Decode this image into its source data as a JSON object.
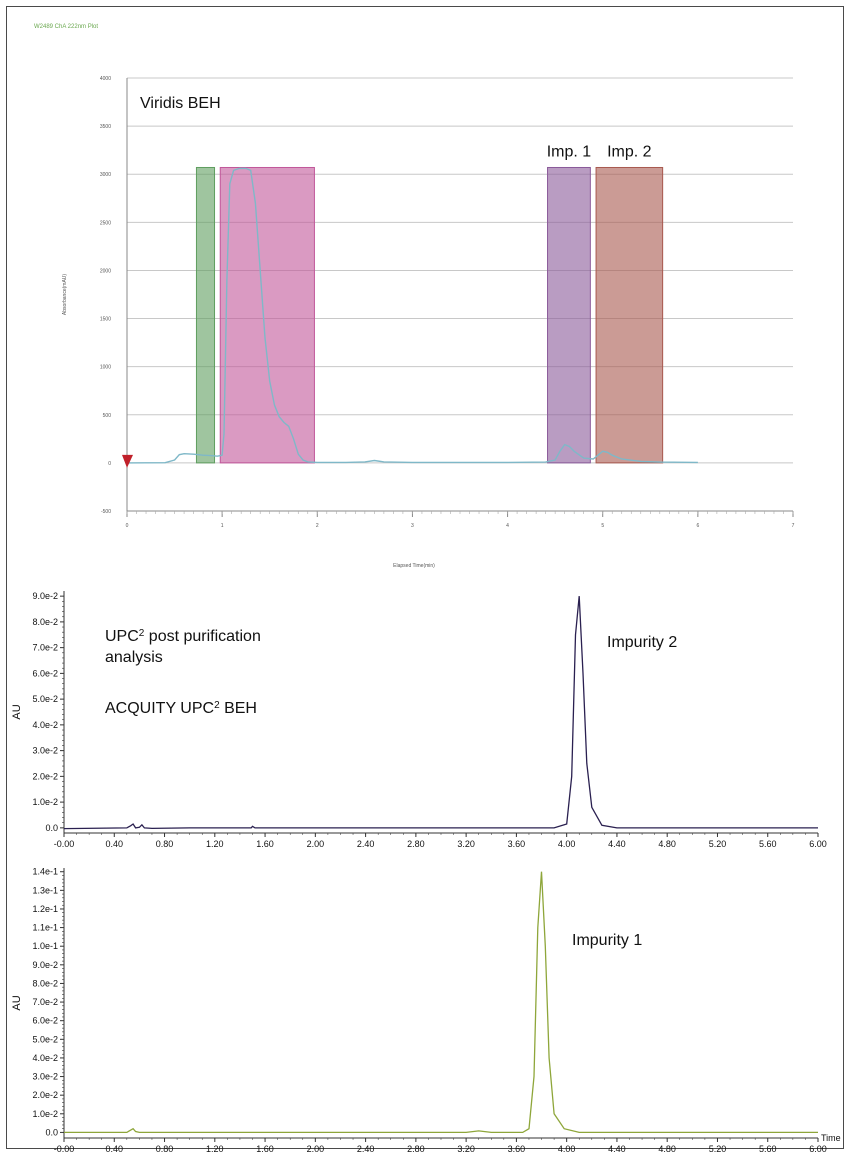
{
  "header": {
    "plot_title": "W2489 ChA 222nm Plot"
  },
  "chart_data": [
    {
      "type": "line",
      "title": "Viridis BEH",
      "xlabel": "Elapsed Time(min)",
      "ylabel": "Absorbance(mAU)",
      "xlim": [
        0,
        7
      ],
      "ylim": [
        -500,
        4000
      ],
      "x_ticks": [
        "0",
        "1",
        "2",
        "3",
        "4",
        "5",
        "6",
        "7"
      ],
      "y_ticks": [
        "-500",
        "0",
        "500",
        "1000",
        "1500",
        "2000",
        "2500",
        "3000",
        "3500",
        "4000"
      ],
      "grid": true,
      "line_color": "#7fb8c8",
      "series": [
        {
          "x": [
            0,
            0.4,
            0.5,
            0.55,
            0.6,
            0.7,
            0.8,
            0.9,
            0.95,
            1.0,
            1.02,
            1.05,
            1.08,
            1.12,
            1.18,
            1.25,
            1.3,
            1.35,
            1.4,
            1.45,
            1.5,
            1.55,
            1.6,
            1.65,
            1.7,
            1.75,
            1.8,
            1.85,
            1.9,
            2.0,
            2.3,
            2.5,
            2.6,
            2.7,
            3.0,
            4.0,
            4.4,
            4.5,
            4.55,
            4.6,
            4.65,
            4.7,
            4.8,
            4.9,
            4.95,
            5.0,
            5.05,
            5.1,
            5.2,
            5.4,
            5.6,
            6.0
          ],
          "y": [
            0,
            2,
            30,
            85,
            95,
            90,
            80,
            75,
            70,
            80,
            300,
            1900,
            2900,
            3040,
            3060,
            3060,
            3040,
            2700,
            2000,
            1300,
            850,
            600,
            480,
            420,
            380,
            250,
            90,
            30,
            10,
            5,
            5,
            10,
            25,
            10,
            5,
            5,
            8,
            30,
            120,
            190,
            170,
            120,
            50,
            40,
            80,
            120,
            110,
            80,
            40,
            15,
            8,
            5
          ]
        }
      ],
      "fractions": [
        {
          "label": "",
          "x_start": 0.73,
          "x_end": 0.92,
          "top": 3070,
          "color": "#5f9e5f"
        },
        {
          "label": "",
          "x_start": 0.98,
          "x_end": 1.97,
          "top": 3070,
          "color": "#c1579a"
        },
        {
          "label": "Imp. 1",
          "x_start": 4.42,
          "x_end": 4.87,
          "top": 3070,
          "color": "#8a5a9a"
        },
        {
          "label": "Imp. 2",
          "x_start": 4.93,
          "x_end": 5.63,
          "top": 3070,
          "color": "#a8594f"
        }
      ]
    },
    {
      "type": "line",
      "title": "",
      "annotation_lines": [
        "UPC² post purification",
        "analysis",
        "ACQUITY UPC² BEH"
      ],
      "peak_label": "Impurity 2",
      "xlabel": "",
      "ylabel": "AU",
      "xlim": [
        0,
        6
      ],
      "ylim": [
        -0.002,
        0.092
      ],
      "x_ticks": [
        "-0.00",
        "0.40",
        "0.80",
        "1.20",
        "1.60",
        "2.00",
        "2.40",
        "2.80",
        "3.20",
        "3.60",
        "4.00",
        "4.40",
        "4.80",
        "5.20",
        "5.60",
        "6.00"
      ],
      "y_ticks": [
        "0.0",
        "1.0e-2",
        "2.0e-2",
        "3.0e-2",
        "4.0e-2",
        "5.0e-2",
        "6.0e-2",
        "7.0e-2",
        "8.0e-2",
        "9.0e-2"
      ],
      "line_color": "#2a2050",
      "series": [
        {
          "x": [
            0,
            0.5,
            0.53,
            0.55,
            0.57,
            0.6,
            0.62,
            0.64,
            0.7,
            1.0,
            1.49,
            1.5,
            1.52,
            2.0,
            3.0,
            3.9,
            4.0,
            4.04,
            4.07,
            4.1,
            4.13,
            4.16,
            4.2,
            4.28,
            4.4,
            5.0,
            6.0
          ],
          "y": [
            -0.0003,
            0.0,
            0.0008,
            0.0015,
            0.0,
            0.0002,
            0.0012,
            0.0,
            -0.0002,
            0.0,
            0.0,
            0.0006,
            0.0,
            0.0,
            0.0,
            0.0,
            0.0015,
            0.02,
            0.075,
            0.09,
            0.06,
            0.025,
            0.008,
            0.001,
            0.0,
            0.0,
            0.0
          ]
        }
      ]
    },
    {
      "type": "line",
      "title": "",
      "peak_label": "Impurity 1",
      "xlabel": "Time",
      "ylabel": "AU",
      "xlim": [
        0,
        6
      ],
      "ylim": [
        -0.003,
        0.142
      ],
      "x_ticks": [
        "-0.00",
        "0.40",
        "0.80",
        "1.20",
        "1.60",
        "2.00",
        "2.40",
        "2.80",
        "3.20",
        "3.60",
        "4.00",
        "4.40",
        "4.80",
        "5.20",
        "5.60",
        "6.00"
      ],
      "y_ticks": [
        "0.0",
        "1.0e-2",
        "2.0e-2",
        "3.0e-2",
        "4.0e-2",
        "5.0e-2",
        "6.0e-2",
        "7.0e-2",
        "8.0e-2",
        "9.0e-2",
        "1.0e-1",
        "1.1e-1",
        "1.2e-1",
        "1.3e-1",
        "1.4e-1"
      ],
      "line_color": "#8ea63a",
      "series": [
        {
          "x": [
            0,
            0.5,
            0.55,
            0.57,
            0.6,
            0.65,
            1.0,
            2.0,
            3.2,
            3.3,
            3.4,
            3.65,
            3.7,
            3.74,
            3.77,
            3.8,
            3.83,
            3.86,
            3.9,
            3.98,
            4.1,
            5.0,
            6.0
          ],
          "y": [
            0,
            0.0,
            0.002,
            0.0005,
            0.0,
            0.0,
            0.0,
            0.0,
            0.0,
            0.0008,
            0.0,
            0.0,
            0.002,
            0.03,
            0.11,
            0.14,
            0.1,
            0.04,
            0.01,
            0.002,
            0.0,
            0.0,
            0.0
          ]
        }
      ]
    }
  ]
}
